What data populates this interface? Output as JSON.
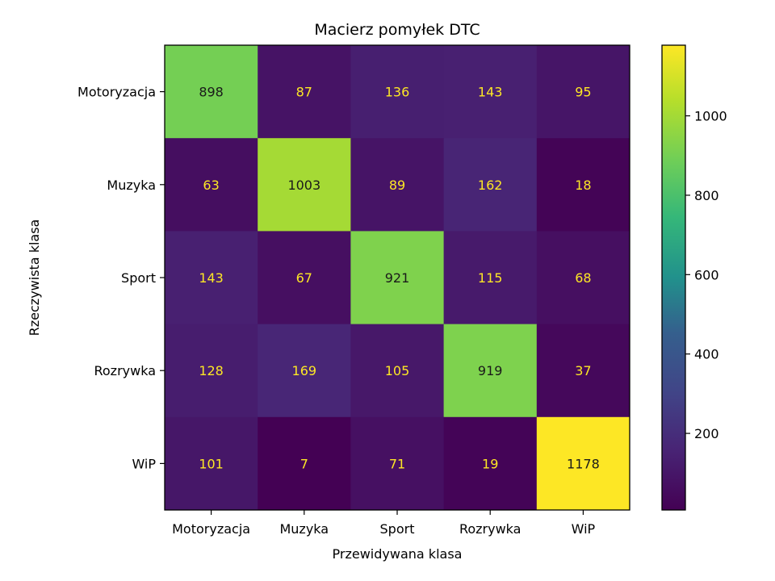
{
  "chart_data": {
    "type": "heatmap",
    "title": "Macierz pomyłek DTC",
    "xlabel": "Przewidywana klasa",
    "ylabel": "Rzeczywista klasa",
    "x_categories": [
      "Motoryzacja",
      "Muzyka",
      "Sport",
      "Rozrywka",
      "WiP"
    ],
    "y_categories": [
      "Motoryzacja",
      "Muzyka",
      "Sport",
      "Rozrywka",
      "WiP"
    ],
    "values": [
      [
        898,
        87,
        136,
        143,
        95
      ],
      [
        63,
        1003,
        89,
        162,
        18
      ],
      [
        143,
        67,
        921,
        115,
        68
      ],
      [
        128,
        169,
        105,
        919,
        37
      ],
      [
        101,
        7,
        71,
        19,
        1178
      ]
    ],
    "colormap": "viridis",
    "colorbar": {
      "min": 7,
      "max": 1178,
      "ticks": [
        200,
        400,
        600,
        800,
        1000
      ]
    },
    "text_colors": {
      "dark": "#1a1a1a",
      "light": "#fde725"
    }
  }
}
